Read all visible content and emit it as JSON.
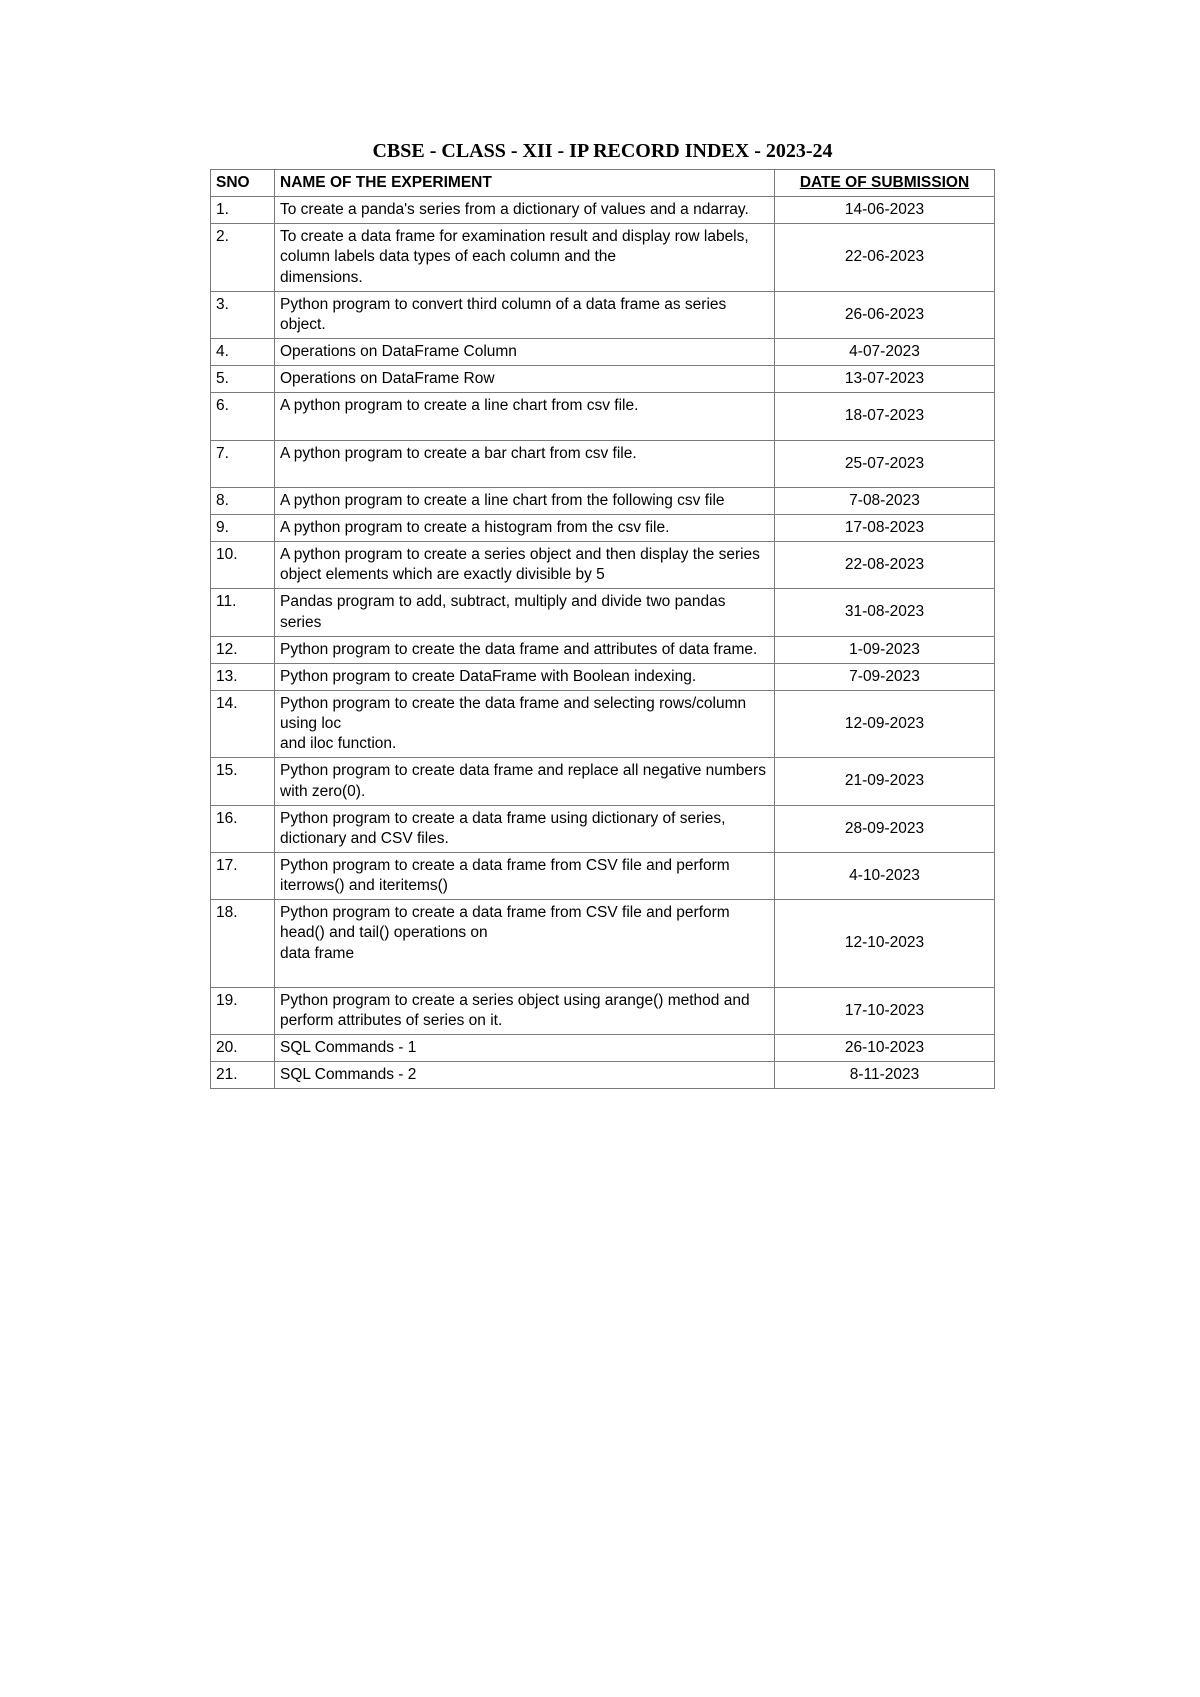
{
  "title": "CBSE - CLASS - XII - IP RECORD INDEX - 2023-24",
  "columns": {
    "sno": "SNO",
    "name": "NAME OF THE EXPERIMENT",
    "date": "DATE OF SUBMISSION"
  },
  "rows": [
    {
      "sno": "1.",
      "name": "To create a panda's series from a dictionary of values and a ndarray.",
      "date": "14-06-2023"
    },
    {
      "sno": "2.",
      "name": "To create a data frame for examination result and display row labels, column labels data types of each column and the\ndimensions.",
      "date": "22-06-2023"
    },
    {
      "sno": "3.",
      "name": "Python program to convert third column of a data frame as series object.",
      "date": "26-06-2023"
    },
    {
      "sno": "4.",
      "name": "Operations on DataFrame Column",
      "date": "4-07-2023"
    },
    {
      "sno": "5.",
      "name": "Operations on DataFrame Row",
      "date": "13-07-2023"
    },
    {
      "sno": "6.",
      "name": "A python program to create a line chart from csv file.\n ",
      "date": "18-07-2023"
    },
    {
      "sno": "7.",
      "name": "A python program to create a bar chart from csv file.\n ",
      "date": "25-07-2023"
    },
    {
      "sno": "8.",
      "name": "A python program to create a line chart from the following csv file",
      "date": "7-08-2023"
    },
    {
      "sno": "9.",
      "name": "A python program to create a histogram from the csv file.",
      "date": "17-08-2023"
    },
    {
      "sno": "10.",
      "name": "A python program to create a series object and then display the series object elements which are exactly divisible by 5",
      "date": "22-08-2023"
    },
    {
      "sno": "11.",
      "name": "Pandas program to add, subtract, multiply and divide two pandas series",
      "date": "31-08-2023"
    },
    {
      "sno": "12.",
      "name": "Python program to create the data frame and attributes of data frame.",
      "date": "1-09-2023"
    },
    {
      "sno": "13.",
      "name": "Python program to create DataFrame with  Boolean indexing.",
      "date": "7-09-2023"
    },
    {
      "sno": "14.",
      "name": "Python program to create the data frame and selecting rows/column using loc\nand iloc function.",
      "date": "12-09-2023"
    },
    {
      "sno": "15.",
      "name": "Python program to create  data frame and replace all negative numbers with zero(0).",
      "date": "21-09-2023"
    },
    {
      "sno": "16.",
      "name": "Python program to create a data frame using dictionary of series, dictionary and CSV files.",
      "date": "28-09-2023"
    },
    {
      "sno": "17.",
      "name": "Python program to create a data frame from CSV file and perform iterrows() and iteritems()",
      "date": "4-10-2023"
    },
    {
      "sno": "18.",
      "name": "Python program to create a data frame from CSV file and perform head() and tail() operations on\ndata frame\n ",
      "date": "12-10-2023"
    },
    {
      "sno": "19.",
      "name": "Python program to create a series object using arange() method and\nperform attributes of series on it.",
      "date": "17-10-2023"
    },
    {
      "sno": "20.",
      "name": "SQL Commands - 1",
      "date": "26-10-2023"
    },
    {
      "sno": "21.",
      "name": "SQL Commands - 2",
      "date": "8-11-2023"
    }
  ],
  "styling": {
    "title_font": "Times New Roman",
    "title_fontsize": 20,
    "body_font": "Verdana",
    "cell_fontsize": 15.5,
    "border_color": "#7a7a7a",
    "background_color": "#ffffff",
    "text_color": "#000000",
    "col_widths": {
      "sno": 64,
      "name": 500,
      "date": 220
    }
  }
}
